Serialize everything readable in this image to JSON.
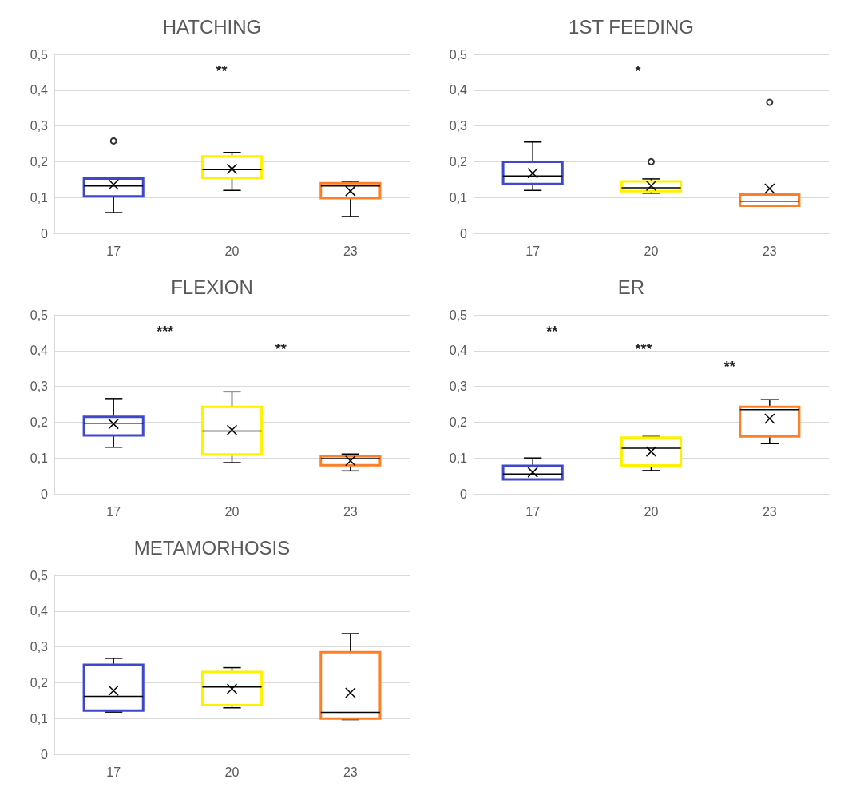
{
  "chart_data": [
    {
      "type": "box",
      "title": "HATCHING",
      "categories": [
        "17",
        "20",
        "23"
      ],
      "colors": [
        "#3f48cc",
        "#fff200",
        "#ff7f27"
      ],
      "ylim": [
        0,
        0.5
      ],
      "yticks": [
        {
          "value": 0,
          "label": "0"
        },
        {
          "value": 0.1,
          "label": "0,1"
        },
        {
          "value": 0.2,
          "label": "0,2"
        },
        {
          "value": 0.3,
          "label": "0,3"
        },
        {
          "value": 0.4,
          "label": "0,4"
        },
        {
          "value": 0.5,
          "label": "0,5"
        }
      ],
      "grid": "y",
      "annotations": [
        "**"
      ],
      "boxes": [
        {
          "low": 0.058,
          "q1": 0.103,
          "median": 0.132,
          "q3": 0.153,
          "high": 0.153,
          "mean": 0.136,
          "outliers": [
            0.258
          ]
        },
        {
          "low": 0.12,
          "q1": 0.155,
          "median": 0.178,
          "q3": 0.215,
          "high": 0.226,
          "mean": 0.18
        },
        {
          "low": 0.047,
          "q1": 0.098,
          "median": 0.132,
          "q3": 0.14,
          "high": 0.145,
          "mean": 0.118
        }
      ]
    },
    {
      "type": "box",
      "title": "1ST FEEDING",
      "categories": [
        "17",
        "20",
        "23"
      ],
      "colors": [
        "#3f48cc",
        "#fff200",
        "#ff7f27"
      ],
      "ylim": [
        0,
        0.5
      ],
      "yticks": [
        {
          "value": 0,
          "label": "0"
        },
        {
          "value": 0.1,
          "label": "0,1"
        },
        {
          "value": 0.2,
          "label": "0,2"
        },
        {
          "value": 0.3,
          "label": "0,3"
        },
        {
          "value": 0.4,
          "label": "0,4"
        },
        {
          "value": 0.5,
          "label": "0,5"
        }
      ],
      "grid": "y",
      "annotations": [
        "*"
      ],
      "boxes": [
        {
          "low": 0.12,
          "q1": 0.138,
          "median": 0.16,
          "q3": 0.2,
          "high": 0.255,
          "mean": 0.168
        },
        {
          "low": 0.112,
          "q1": 0.118,
          "median": 0.127,
          "q3": 0.145,
          "high": 0.152,
          "mean": 0.133,
          "outliers": [
            0.2
          ]
        },
        {
          "low": 0.077,
          "q1": 0.077,
          "median": 0.09,
          "q3": 0.108,
          "high": 0.108,
          "mean": 0.125,
          "outliers": [
            0.366
          ]
        }
      ]
    },
    {
      "type": "box",
      "title": "FLEXION",
      "categories": [
        "17",
        "20",
        "23"
      ],
      "colors": [
        "#3f48cc",
        "#fff200",
        "#ff7f27"
      ],
      "ylim": [
        0,
        0.5
      ],
      "yticks": [
        {
          "value": 0,
          "label": "0"
        },
        {
          "value": 0.1,
          "label": "0,1"
        },
        {
          "value": 0.2,
          "label": "0,2"
        },
        {
          "value": 0.3,
          "label": "0,3"
        },
        {
          "value": 0.4,
          "label": "0,4"
        },
        {
          "value": 0.5,
          "label": "0,5"
        }
      ],
      "grid": "y",
      "annotations": [
        "***",
        "**"
      ],
      "boxes": [
        {
          "low": 0.13,
          "q1": 0.163,
          "median": 0.197,
          "q3": 0.215,
          "high": 0.266,
          "mean": 0.195
        },
        {
          "low": 0.087,
          "q1": 0.11,
          "median": 0.175,
          "q3": 0.243,
          "high": 0.285,
          "mean": 0.178
        },
        {
          "low": 0.064,
          "q1": 0.08,
          "median": 0.098,
          "q3": 0.105,
          "high": 0.111,
          "mean": 0.092
        }
      ]
    },
    {
      "type": "box",
      "title": "ER",
      "categories": [
        "17",
        "20",
        "23"
      ],
      "colors": [
        "#3f48cc",
        "#fff200",
        "#ff7f27"
      ],
      "ylim": [
        0,
        0.5
      ],
      "yticks": [
        {
          "value": 0,
          "label": "0"
        },
        {
          "value": 0.1,
          "label": "0,1"
        },
        {
          "value": 0.2,
          "label": "0,2"
        },
        {
          "value": 0.3,
          "label": "0,3"
        },
        {
          "value": 0.4,
          "label": "0,4"
        },
        {
          "value": 0.5,
          "label": "0,5"
        }
      ],
      "grid": "y",
      "annotations": [
        "**",
        "***",
        "**"
      ],
      "boxes": [
        {
          "low": 0.04,
          "q1": 0.04,
          "median": 0.055,
          "q3": 0.078,
          "high": 0.1,
          "mean": 0.06
        },
        {
          "low": 0.065,
          "q1": 0.079,
          "median": 0.127,
          "q3": 0.157,
          "high": 0.16,
          "mean": 0.118
        },
        {
          "low": 0.14,
          "q1": 0.16,
          "median": 0.235,
          "q3": 0.243,
          "high": 0.263,
          "mean": 0.21
        }
      ]
    },
    {
      "type": "box",
      "title": "METAMORHOSIS",
      "categories": [
        "17",
        "20",
        "23"
      ],
      "colors": [
        "#3f48cc",
        "#fff200",
        "#ff7f27"
      ],
      "ylim": [
        0,
        0.5
      ],
      "yticks": [
        {
          "value": 0,
          "label": "0"
        },
        {
          "value": 0.1,
          "label": "0,1"
        },
        {
          "value": 0.2,
          "label": "0,2"
        },
        {
          "value": 0.3,
          "label": "0,3"
        },
        {
          "value": 0.4,
          "label": "0,4"
        },
        {
          "value": 0.5,
          "label": "0,5"
        }
      ],
      "grid": "y",
      "boxes": [
        {
          "low": 0.118,
          "q1": 0.122,
          "median": 0.162,
          "q3": 0.25,
          "high": 0.268,
          "mean": 0.178
        },
        {
          "low": 0.13,
          "q1": 0.137,
          "median": 0.188,
          "q3": 0.23,
          "high": 0.242,
          "mean": 0.183
        },
        {
          "low": 0.097,
          "q1": 0.1,
          "median": 0.117,
          "q3": 0.285,
          "high": 0.337,
          "mean": 0.172
        }
      ]
    }
  ]
}
